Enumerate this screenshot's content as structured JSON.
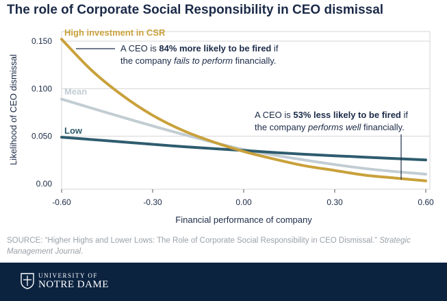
{
  "title": "The role of Corporate Social Responsibility in CEO dismissal",
  "source": {
    "prefix": "SOURCE: “Higher Highs and Lower Lows: The Role of Corporate Social Responsibility in CEO Dismissal.” ",
    "journal": "Strategic Management Journal",
    "suffix": "."
  },
  "logo": {
    "line1": "UNIVERSITY OF",
    "line2": "NOTRE DAME"
  },
  "colors": {
    "high": "#c9a13b",
    "mean": "#c2cdd3",
    "low": "#2e5c6e",
    "text": "#1b2a47",
    "grid": "#d4d4d4",
    "footer": "#0c2340"
  },
  "chart_data": {
    "type": "line",
    "title": "The role of Corporate Social Responsibility in CEO dismissal",
    "xlabel": "Financial performance of company",
    "ylabel": "Likelihood of CEO dismissal",
    "xlim": [
      -0.6,
      0.6
    ],
    "ylim": [
      0,
      0.15
    ],
    "xticks": [
      -0.6,
      -0.3,
      0.0,
      0.3,
      0.6
    ],
    "xtick_labels": [
      "-0.60",
      "-0.30",
      "0.00",
      "0.30",
      "0.60"
    ],
    "yticks": [
      0.0,
      0.05,
      0.1,
      0.15
    ],
    "ytick_labels": [
      "0.00",
      "0.050",
      "0.100",
      "0.150"
    ],
    "grid": "horizontal",
    "series": [
      {
        "name": "High investment in CSR",
        "x": [
          -0.6,
          -0.5,
          -0.4,
          -0.3,
          -0.2,
          -0.1,
          0.0,
          0.1,
          0.2,
          0.3,
          0.4,
          0.5,
          0.6
        ],
        "values": [
          0.152,
          0.119,
          0.093,
          0.072,
          0.056,
          0.044,
          0.034,
          0.026,
          0.019,
          0.014,
          0.009,
          0.006,
          0.003
        ]
      },
      {
        "name": "Mean",
        "x": [
          -0.6,
          -0.4,
          -0.2,
          0.0,
          0.2,
          0.4,
          0.6
        ],
        "values": [
          0.089,
          0.07,
          0.052,
          0.036,
          0.025,
          0.016,
          0.01
        ]
      },
      {
        "name": "Low",
        "x": [
          -0.6,
          -0.4,
          -0.2,
          0.0,
          0.2,
          0.4,
          0.6
        ],
        "values": [
          0.049,
          0.044,
          0.039,
          0.035,
          0.031,
          0.028,
          0.025
        ]
      }
    ],
    "annotations": [
      {
        "text_pre": "A CEO is ",
        "text_bold": "84% more likely to be fired",
        "text_mid": " if",
        "line2_pre": "the company ",
        "line2_italic": "fails to perform",
        "line2_post": " financially."
      },
      {
        "text_pre": "A CEO is ",
        "text_bold": "53% less likely to be fired",
        "text_mid": " if",
        "line2_pre": "the company ",
        "line2_italic": "performs well",
        "line2_post": " financially."
      }
    ]
  }
}
